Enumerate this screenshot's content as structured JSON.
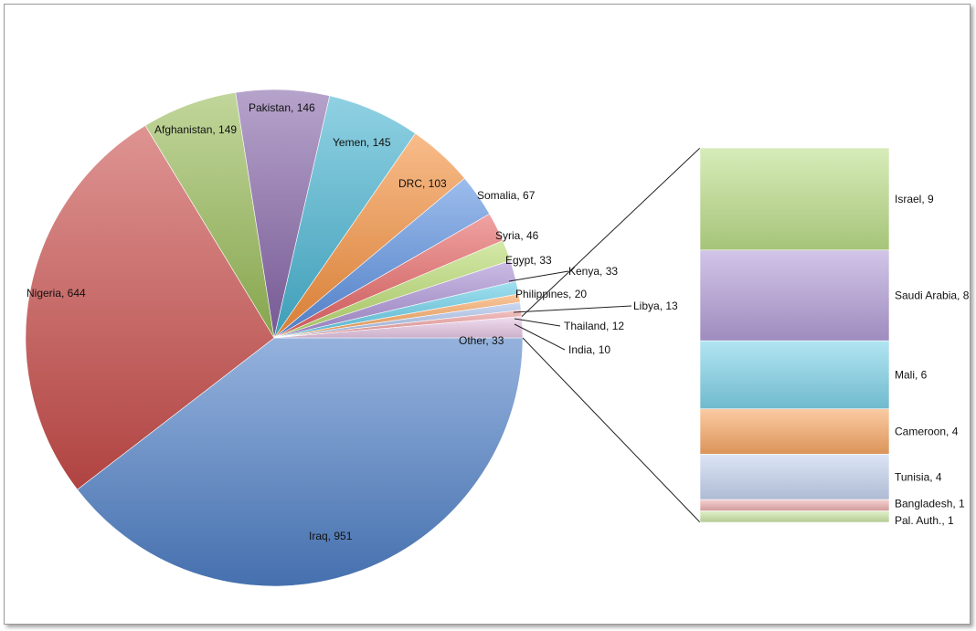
{
  "chart_data": [
    {
      "type": "pie",
      "slices": [
        {
          "label": "Iraq",
          "value": 951,
          "color": "#4e7fc6"
        },
        {
          "label": "Nigeria",
          "value": 644,
          "color": "#c84c4a"
        },
        {
          "label": "Afghanistan",
          "value": 149,
          "color": "#98bb58"
        },
        {
          "label": "Pakistan",
          "value": 146,
          "color": "#8665a8"
        },
        {
          "label": "Yemen",
          "value": 145,
          "color": "#46b3d1"
        },
        {
          "label": "DRC",
          "value": 103,
          "color": "#f48f3c"
        },
        {
          "label": "Somalia",
          "value": 67,
          "color": "#5a8fe0"
        },
        {
          "label": "Syria",
          "value": 46,
          "color": "#e66464"
        },
        {
          "label": "Egypt",
          "value": 33,
          "color": "#b8db6e"
        },
        {
          "label": "Kenya",
          "value": 33,
          "color": "#a98fd4"
        },
        {
          "label": "Philippines",
          "value": 20,
          "color": "#62cbe6"
        },
        {
          "label": "Libya",
          "value": 13,
          "color": "#f6a15a"
        },
        {
          "label": "Thailand",
          "value": 12,
          "color": "#a9c0ea"
        },
        {
          "label": "India",
          "value": 10,
          "color": "#eb9a9a"
        },
        {
          "label": "Other",
          "value": 33,
          "color": "#e8c8e6"
        }
      ]
    },
    {
      "type": "bar",
      "stacked": true,
      "segments": [
        {
          "label": "Israel",
          "value": 9,
          "color": "#bddf8a"
        },
        {
          "label": "Saudi Arabia",
          "value": 8,
          "color": "#b49fd8"
        },
        {
          "label": "Mali",
          "value": 6,
          "color": "#7fd3ea"
        },
        {
          "label": "Cameroon",
          "value": 4,
          "color": "#f9a866"
        },
        {
          "label": "Tunisia",
          "value": 4,
          "color": "#c6d4f0"
        },
        {
          "label": "Bangladesh",
          "value": 1,
          "color": "#efb0b0"
        },
        {
          "label": "Pal. Auth.",
          "value": 1,
          "color": "#cce6a6"
        }
      ]
    }
  ]
}
